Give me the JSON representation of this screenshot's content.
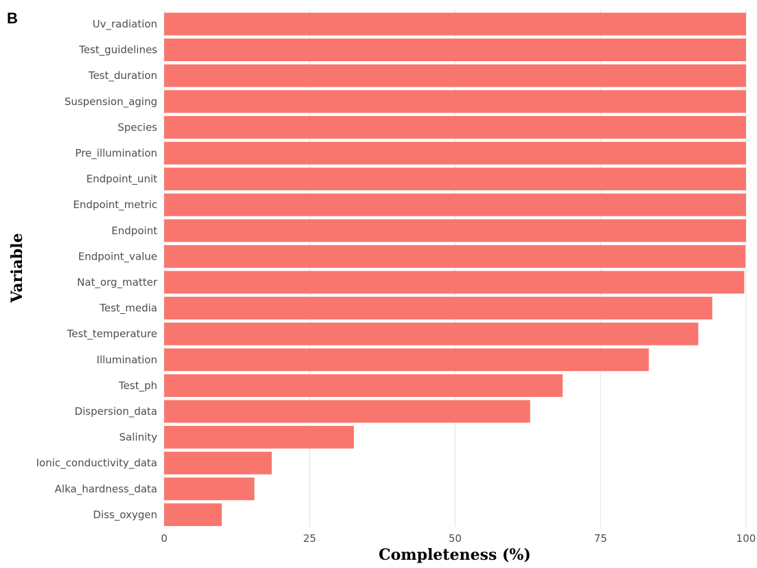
{
  "panel_label": "B",
  "chart_data": {
    "type": "bar",
    "orientation": "horizontal",
    "categories": [
      "Uv_radiation",
      "Test_guidelines",
      "Test_duration",
      "Suspension_aging",
      "Species",
      "Pre_illumination",
      "Endpoint_unit",
      "Endpoint_metric",
      "Endpoint",
      "Endpoint_value",
      "Nat_org_matter",
      "Test_media",
      "Test_temperature",
      "Illumination",
      "Test_ph",
      "Dispersion_data",
      "Salinity",
      "Ionic_conductivity_data",
      "Alka_hardness_data",
      "Diss_oxygen"
    ],
    "values": [
      100,
      100,
      100,
      100,
      100,
      100,
      100,
      100,
      100,
      99.9,
      99.7,
      94.2,
      91.8,
      83.3,
      68.5,
      62.9,
      32.6,
      18.5,
      15.5,
      9.9
    ],
    "xlabel": "Completeness (%)",
    "ylabel": "Variable",
    "xlim": [
      0,
      100
    ],
    "xticks": [
      0,
      25,
      50,
      75,
      100
    ],
    "xtick_labels": [
      "0",
      "25",
      "50",
      "75",
      "100"
    ],
    "grid": true,
    "bar_color": "#f8766d",
    "grid_color": "#ebebeb",
    "legend": "none"
  }
}
